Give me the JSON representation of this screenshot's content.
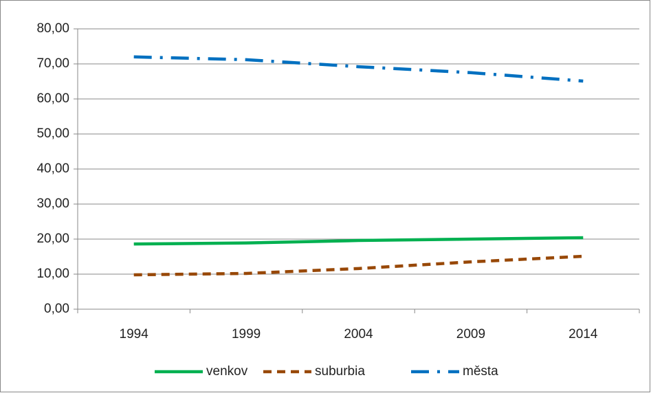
{
  "chart_data": {
    "type": "line",
    "categories": [
      "1994",
      "1999",
      "2004",
      "2009",
      "2014"
    ],
    "series": [
      {
        "name": "venkov",
        "color": "#00b050",
        "dash": "solid",
        "values": [
          18.6,
          18.9,
          19.6,
          20.0,
          20.4
        ]
      },
      {
        "name": "suburbia",
        "color": "#984807",
        "dash": "dashed",
        "values": [
          9.8,
          10.2,
          11.6,
          13.5,
          15.1
        ]
      },
      {
        "name": "města",
        "color": "#0070c0",
        "dash": "dashdot",
        "values": [
          72.0,
          71.2,
          69.2,
          67.5,
          65.1
        ]
      }
    ],
    "ylim": [
      0,
      80
    ],
    "yticks": [
      {
        "value": 0,
        "label": "0,00"
      },
      {
        "value": 10,
        "label": "10,00"
      },
      {
        "value": 20,
        "label": "20,00"
      },
      {
        "value": 30,
        "label": "30,00"
      },
      {
        "value": 40,
        "label": "40,00"
      },
      {
        "value": 50,
        "label": "50,00"
      },
      {
        "value": 60,
        "label": "60,00"
      },
      {
        "value": 70,
        "label": "70,00"
      },
      {
        "value": 80,
        "label": "80,00"
      }
    ],
    "grid": true,
    "legend": "bottom"
  }
}
